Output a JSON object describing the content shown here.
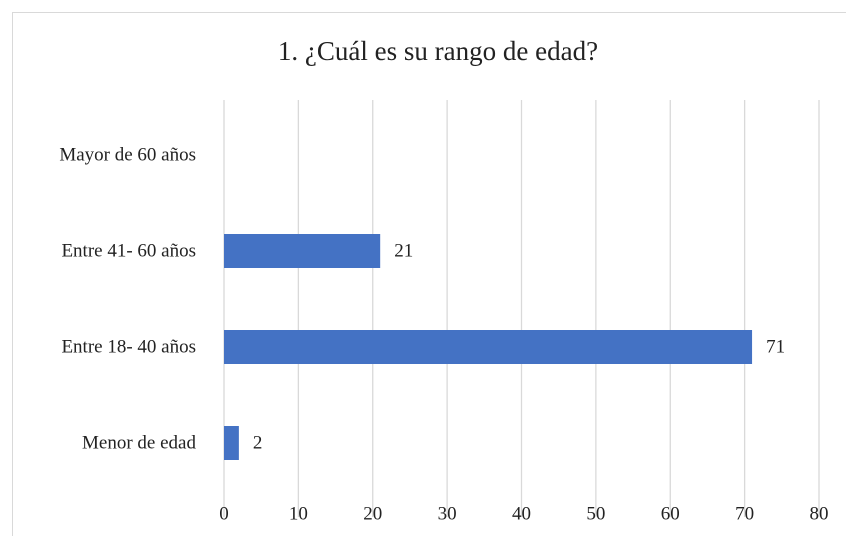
{
  "chart_data": {
    "type": "hbar",
    "title": "1. ¿Cuál es su rango de edad?",
    "categories": [
      "Mayor de 60 años",
      "Entre 41- 60 años",
      "Entre 18- 40 años",
      "Menor de edad"
    ],
    "values": [
      null,
      21,
      71,
      2
    ],
    "color": "#4472c4",
    "xlim": [
      0,
      80
    ],
    "xticks": [
      0,
      10,
      20,
      30,
      40,
      50,
      60,
      70,
      80
    ],
    "grid": true
  }
}
